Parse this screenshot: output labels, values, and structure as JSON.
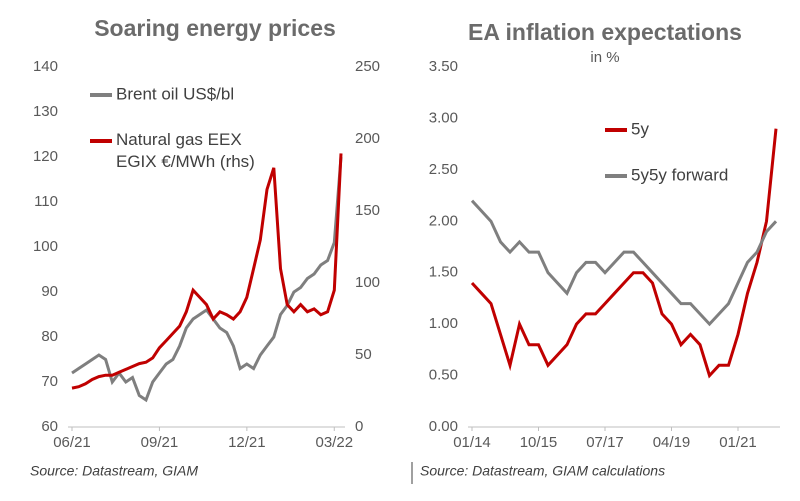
{
  "chart_data": [
    {
      "type": "line",
      "title": "Soaring energy prices",
      "source": "Source: Datastream, GIAM",
      "categories": [
        "06/21",
        null,
        null,
        null,
        null,
        null,
        null,
        null,
        null,
        null,
        null,
        null,
        null,
        "09/21",
        null,
        null,
        null,
        null,
        null,
        null,
        null,
        null,
        null,
        null,
        null,
        null,
        "12/21",
        null,
        null,
        null,
        null,
        null,
        null,
        null,
        null,
        null,
        null,
        null,
        null,
        "03/22",
        null
      ],
      "series": [
        {
          "name": "Brent oil US$/bl",
          "color": "#7f7f7f",
          "values": [
            72,
            73,
            74,
            75,
            76,
            75,
            70,
            72,
            70,
            71,
            67,
            66,
            70,
            72,
            74,
            75,
            78,
            82,
            84,
            85,
            86,
            84,
            82,
            81,
            78,
            73,
            74,
            73,
            76,
            78,
            80,
            85,
            87,
            90,
            91,
            93,
            94,
            96,
            97,
            101,
            120
          ]
        },
        {
          "name": "Natural gas EEX EGIX €/MWh (rhs)",
          "color": "#c00000",
          "axis": "y2",
          "values": [
            27,
            28,
            30,
            33,
            35,
            36,
            36,
            38,
            40,
            42,
            44,
            45,
            48,
            55,
            60,
            65,
            70,
            80,
            95,
            90,
            85,
            75,
            80,
            78,
            75,
            80,
            90,
            110,
            130,
            165,
            180,
            110,
            85,
            80,
            85,
            80,
            82,
            78,
            80,
            95,
            190
          ]
        }
      ],
      "ylim": [
        60,
        140
      ],
      "yticks": [
        60,
        70,
        80,
        90,
        100,
        110,
        120,
        130,
        140
      ],
      "y2lim": [
        0,
        250
      ],
      "y2ticks": [
        0,
        50,
        100,
        150,
        200,
        250
      ],
      "legend": "upper left",
      "grid": false
    },
    {
      "type": "line",
      "title": "EA inflation expectations",
      "subtitle": "in %",
      "source": "Source: Datastream, GIAM calculations",
      "categories": [
        "01/14",
        null,
        null,
        null,
        null,
        null,
        null,
        "10/15",
        null,
        null,
        null,
        null,
        null,
        null,
        "07/17",
        null,
        null,
        null,
        null,
        null,
        null,
        "04/19",
        null,
        null,
        null,
        null,
        null,
        null,
        "01/21",
        null,
        null,
        null,
        null
      ],
      "series": [
        {
          "name": "5y",
          "color": "#c00000",
          "values": [
            1.4,
            1.3,
            1.2,
            0.9,
            0.6,
            1.0,
            0.8,
            0.8,
            0.6,
            0.7,
            0.8,
            1.0,
            1.1,
            1.1,
            1.2,
            1.3,
            1.4,
            1.5,
            1.5,
            1.4,
            1.1,
            1.0,
            0.8,
            0.9,
            0.8,
            0.5,
            0.6,
            0.6,
            0.9,
            1.3,
            1.6,
            2.0,
            2.9
          ]
        },
        {
          "name": "5y5y forward",
          "color": "#7f7f7f",
          "values": [
            2.2,
            2.1,
            2.0,
            1.8,
            1.7,
            1.8,
            1.7,
            1.7,
            1.5,
            1.4,
            1.3,
            1.5,
            1.6,
            1.6,
            1.5,
            1.6,
            1.7,
            1.7,
            1.6,
            1.5,
            1.4,
            1.3,
            1.2,
            1.2,
            1.1,
            1.0,
            1.1,
            1.2,
            1.4,
            1.6,
            1.7,
            1.9,
            2.0
          ]
        }
      ],
      "ylim": [
        0,
        3.5
      ],
      "yticks": [
        {
          "value": 0,
          "label": "0.00"
        },
        {
          "value": 0.5,
          "label": "0.50"
        },
        {
          "value": 1,
          "label": "1.00"
        },
        {
          "value": 1.5,
          "label": "1.50"
        },
        {
          "value": 2,
          "label": "2.00"
        },
        {
          "value": 2.5,
          "label": "2.50"
        },
        {
          "value": 3,
          "label": "3.00"
        },
        {
          "value": 3.5,
          "label": "3.50"
        }
      ],
      "legend": "center right",
      "grid": false
    }
  ]
}
